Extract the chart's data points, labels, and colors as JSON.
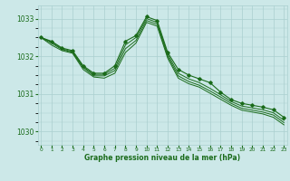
{
  "bg_color": "#cce8e8",
  "grid_color": "#aacfcf",
  "line_color": "#1a6b1a",
  "xlabel": "Graphe pression niveau de la mer (hPa)",
  "xlabel_color": "#1a6b1a",
  "yticks": [
    1030,
    1031,
    1032,
    1033
  ],
  "xticks": [
    0,
    1,
    2,
    3,
    4,
    5,
    6,
    7,
    8,
    9,
    10,
    11,
    12,
    13,
    14,
    15,
    16,
    17,
    18,
    19,
    20,
    21,
    22,
    23
  ],
  "ylim": [
    1029.65,
    1033.35
  ],
  "xlim": [
    -0.3,
    23.3
  ],
  "series": [
    [
      1032.5,
      1032.4,
      1032.22,
      1032.15,
      1031.75,
      1031.55,
      1031.55,
      1031.75,
      1032.4,
      1032.55,
      1033.05,
      1032.95,
      1032.1,
      1031.65,
      1031.5,
      1031.4,
      1031.3,
      1031.05,
      1030.85,
      1030.75,
      1030.7,
      1030.65,
      1030.58,
      1030.38
    ],
    [
      1032.5,
      1032.38,
      1032.2,
      1032.12,
      1031.72,
      1031.52,
      1031.52,
      1031.68,
      1032.3,
      1032.5,
      1033.0,
      1032.9,
      1032.05,
      1031.55,
      1031.4,
      1031.3,
      1031.15,
      1030.98,
      1030.8,
      1030.68,
      1030.63,
      1030.58,
      1030.5,
      1030.3
    ],
    [
      1032.5,
      1032.35,
      1032.18,
      1032.1,
      1031.7,
      1031.48,
      1031.48,
      1031.62,
      1032.2,
      1032.42,
      1032.95,
      1032.85,
      1032.0,
      1031.48,
      1031.33,
      1031.23,
      1031.08,
      1030.92,
      1030.75,
      1030.62,
      1030.57,
      1030.52,
      1030.44,
      1030.24
    ],
    [
      1032.5,
      1032.3,
      1032.15,
      1032.08,
      1031.65,
      1031.45,
      1031.42,
      1031.55,
      1032.1,
      1032.35,
      1032.9,
      1032.8,
      1031.95,
      1031.42,
      1031.27,
      1031.18,
      1031.02,
      1030.86,
      1030.7,
      1030.57,
      1030.52,
      1030.47,
      1030.38,
      1030.18
    ]
  ],
  "has_markers": [
    true,
    false,
    false,
    false
  ]
}
